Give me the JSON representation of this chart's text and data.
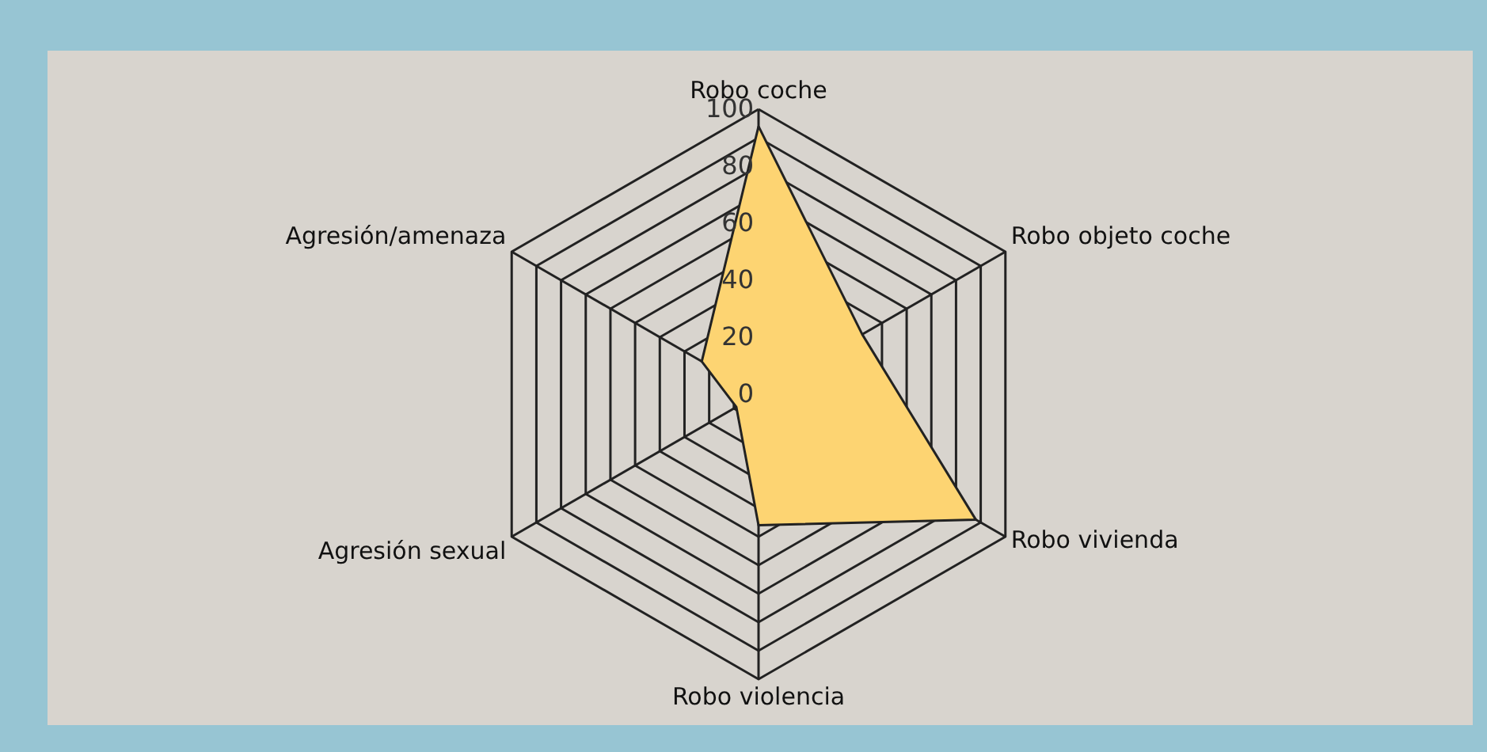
{
  "chart_data": {
    "type": "radar",
    "categories": [
      "Robo coche",
      "Robo objeto coche",
      "Robo vivienda",
      "Robo violencia",
      "Agresión sexual",
      "Agresión/amenaza"
    ],
    "series": [
      {
        "color": "#fdd472",
        "values": [
          94,
          42,
          88,
          46,
          9,
          23
        ]
      }
    ],
    "ylim": [
      0,
      100
    ],
    "yticks": [
      0,
      20,
      40,
      60,
      80,
      100
    ],
    "grid": true
  }
}
